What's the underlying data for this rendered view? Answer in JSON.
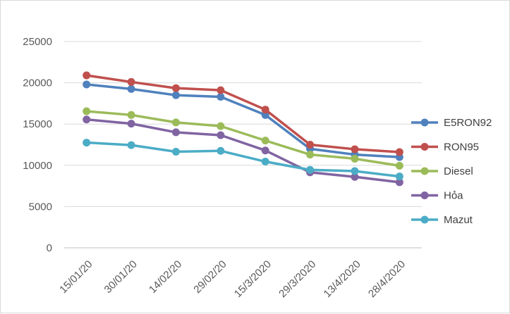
{
  "chart_data": {
    "type": "line",
    "title": "",
    "xlabel": "",
    "ylabel": "",
    "categories": [
      "15/01/20",
      "30/01/20",
      "14/02/20",
      "29/02/20",
      "15/3/2020",
      "29/3/2020",
      "13/4/2020",
      "28/4/2020"
    ],
    "yticks": [
      "0",
      "5000",
      "10000",
      "15000",
      "20000",
      "25000"
    ],
    "ylim": [
      0,
      25000
    ],
    "grid": true,
    "legend_position": "right",
    "series": [
      {
        "name": "E5RON92",
        "color": "#4f81bd",
        "values": [
          19800,
          19250,
          18500,
          18300,
          16100,
          12000,
          11300,
          11000
        ]
      },
      {
        "name": "RON95",
        "color": "#c0504d",
        "values": [
          20900,
          20100,
          19350,
          19100,
          16750,
          12500,
          11950,
          11600
        ]
      },
      {
        "name": "Diesel",
        "color": "#9bbb59",
        "values": [
          16550,
          16100,
          15200,
          14750,
          13000,
          11300,
          10800,
          9950
        ]
      },
      {
        "name": "Hỏa",
        "color": "#8064a2",
        "values": [
          15550,
          15050,
          14000,
          13650,
          11800,
          9150,
          8600,
          7950
        ]
      },
      {
        "name": "Mazut",
        "color": "#4bacc6",
        "values": [
          12750,
          12450,
          11650,
          11750,
          10450,
          9450,
          9300,
          8650
        ]
      }
    ]
  }
}
